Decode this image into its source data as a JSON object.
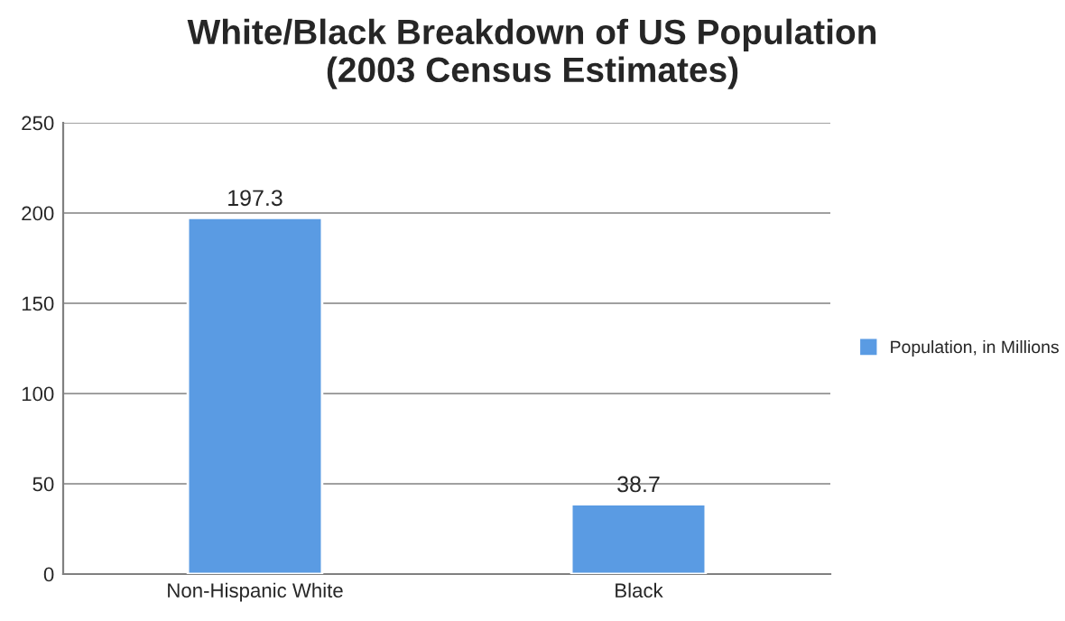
{
  "chart_data": {
    "type": "bar",
    "title": "White/Black Breakdown of US Population\n(2003 Census Estimates)",
    "categories": [
      "Non-Hispanic White",
      "Black"
    ],
    "series": [
      {
        "name": "Population, in Millions",
        "color": "#5a9be3",
        "values": [
          197.3,
          38.7
        ]
      }
    ],
    "ylim": [
      0,
      250
    ],
    "yticks": [
      0,
      50,
      100,
      150,
      200,
      250
    ],
    "grid": "y",
    "legend": "right",
    "data_labels": true
  }
}
